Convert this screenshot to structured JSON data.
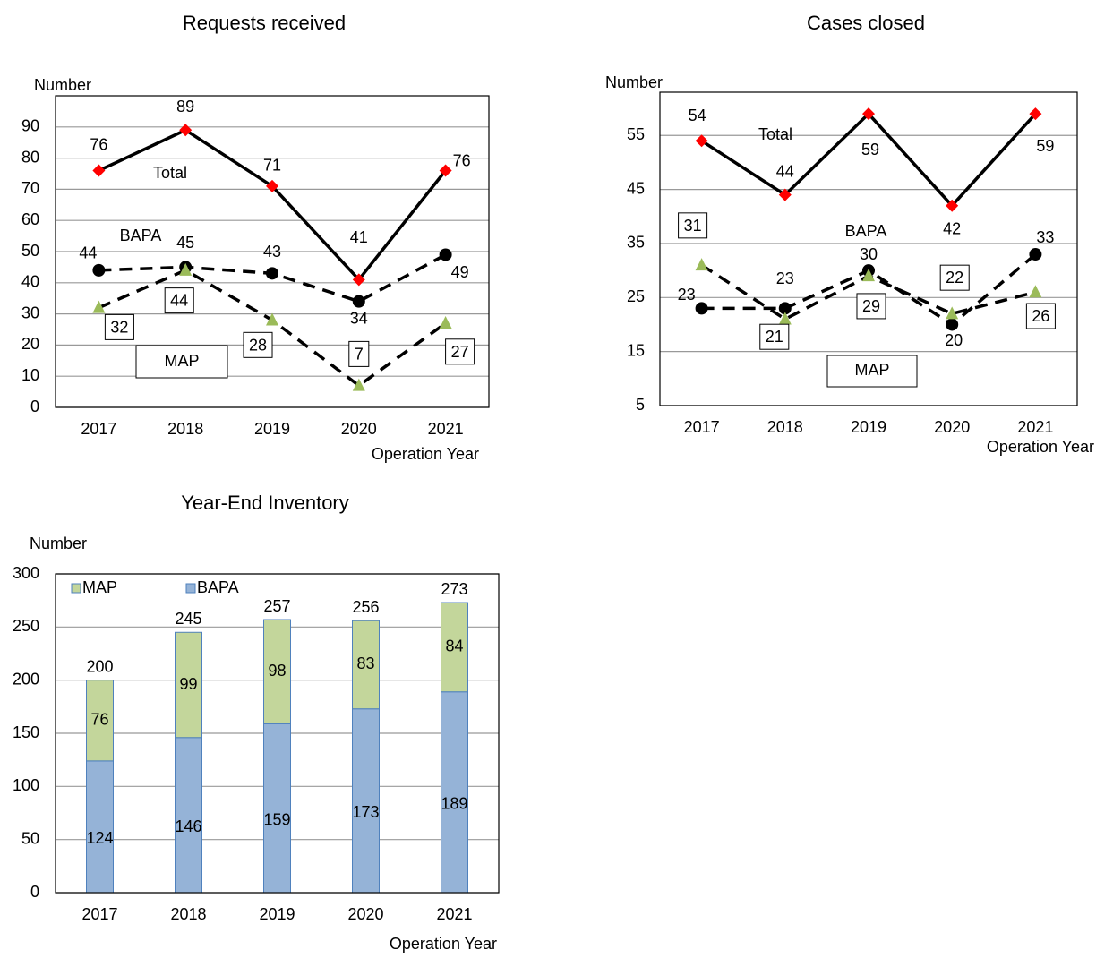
{
  "chart_data": [
    {
      "type": "line",
      "title": "Requests received",
      "y_label": "Number",
      "x_label": "Operation Year",
      "categories": [
        "2017",
        "2018",
        "2019",
        "2020",
        "2021"
      ],
      "ylim": [
        0,
        100
      ],
      "yticks": [
        0,
        10,
        20,
        30,
        40,
        50,
        60,
        70,
        80,
        90
      ],
      "grid": true,
      "series": [
        {
          "name": "Total",
          "color": "#ff0000",
          "marker": "diamond",
          "line_style": "solid",
          "boxed": false,
          "values": [
            76,
            89,
            71,
            41,
            76
          ]
        },
        {
          "name": "BAPA",
          "color": "#000000",
          "marker": "circle",
          "line_style": "dashed",
          "boxed": false,
          "values": [
            44,
            45,
            43,
            34,
            49
          ]
        },
        {
          "name": "MAP",
          "color": "#9bbb59",
          "marker": "triangle",
          "line_style": "dashed",
          "boxed": true,
          "values": [
            32,
            44,
            28,
            7,
            27
          ]
        }
      ]
    },
    {
      "type": "line",
      "title": "Cases closed",
      "y_label": "Number",
      "x_label": "Operation Year",
      "categories": [
        "2017",
        "2018",
        "2019",
        "2020",
        "2021"
      ],
      "ylim": [
        5,
        63
      ],
      "yticks": [
        5,
        15,
        25,
        35,
        45,
        55
      ],
      "grid": true,
      "series": [
        {
          "name": "Total",
          "color": "#ff0000",
          "marker": "diamond",
          "line_style": "solid",
          "boxed": false,
          "values": [
            54,
            44,
            59,
            42,
            59
          ]
        },
        {
          "name": "BAPA",
          "color": "#000000",
          "marker": "circle",
          "line_style": "dashed",
          "boxed": false,
          "values": [
            23,
            23,
            30,
            20,
            33
          ]
        },
        {
          "name": "MAP",
          "color": "#9bbb59",
          "marker": "triangle",
          "line_style": "dashed",
          "boxed": true,
          "values": [
            31,
            21,
            29,
            22,
            26
          ]
        }
      ]
    },
    {
      "type": "stacked_bar",
      "title": "Year-End Inventory",
      "y_label": "Number",
      "x_label": "Operation Year",
      "categories": [
        "2017",
        "2018",
        "2019",
        "2020",
        "2021"
      ],
      "ylim": [
        0,
        300
      ],
      "yticks": [
        0,
        50,
        100,
        150,
        200,
        250,
        300
      ],
      "grid": true,
      "legend": "top-left",
      "series": [
        {
          "name": "MAP",
          "color": "#c3d69b",
          "values": [
            76,
            99,
            98,
            83,
            84
          ]
        },
        {
          "name": "BAPA",
          "color": "#95b3d7",
          "values": [
            124,
            146,
            159,
            173,
            189
          ]
        }
      ],
      "totals": [
        200,
        245,
        257,
        256,
        273
      ]
    }
  ]
}
